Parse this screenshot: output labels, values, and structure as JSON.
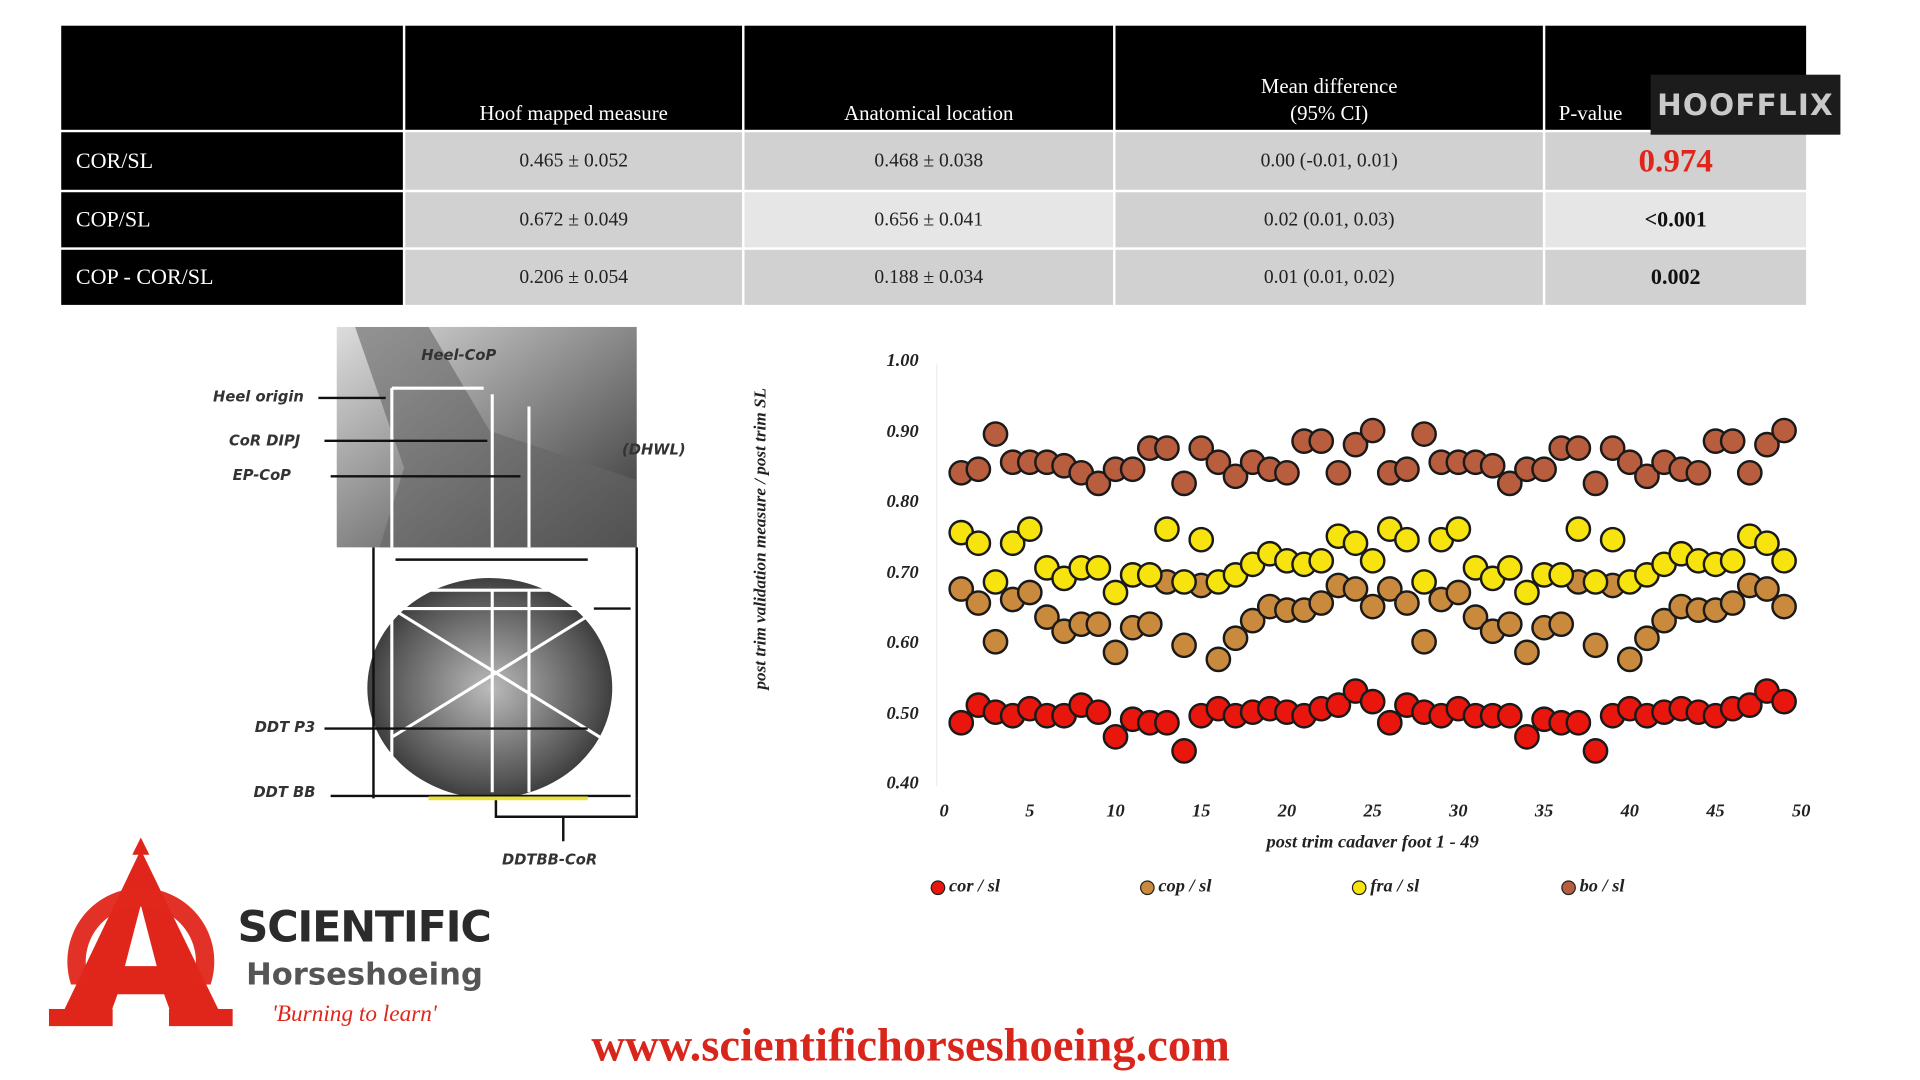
{
  "watermark": {
    "label": "HOOFFLIX"
  },
  "table": {
    "headers": [
      "",
      "Hoof mapped measure",
      "Anatomical location",
      "Mean difference",
      "P-value"
    ],
    "header_sub": "(95% CI)",
    "rows": [
      {
        "label": "COR/SL",
        "hoof": "0.465 ± 0.052",
        "anat": "0.468 ± 0.038",
        "diff": "0.00 (-0.01, 0.01)",
        "p": "0.974"
      },
      {
        "label": "COP/SL",
        "hoof": "0.672 ± 0.049",
        "anat": "0.656 ± 0.041",
        "diff": "0.02 (0.01, 0.03)",
        "p": "<0.001"
      },
      {
        "label": "COP - COR/SL",
        "hoof": "0.206 ± 0.054",
        "anat": "0.188 ± 0.034",
        "diff": "0.01 (0.01, 0.02)",
        "p": "0.002"
      }
    ],
    "highlight_color": "#e0261b"
  },
  "diagram": {
    "labels": {
      "heel_cop": "Heel-CoP",
      "heel_origin": "Heel origin",
      "cor_dipj": "CoR DIPJ",
      "ep_cop": "EP-CoP",
      "dhwl": "(DHWL)",
      "ddt_p3": "DDT P3",
      "ddt_bb": "DDT BB",
      "ddtbb_cor": "DDTBB-CoR"
    }
  },
  "chart_data": {
    "type": "scatter",
    "xlabel": "post trim cadaver foot 1 - 49",
    "ylabel": "post trim validation measure / post trim SL",
    "xlim": [
      0,
      50
    ],
    "ylim": [
      0.4,
      1.0
    ],
    "xticks": [
      "0",
      "5",
      "10",
      "15",
      "20",
      "25",
      "30",
      "35",
      "40",
      "45",
      "50"
    ],
    "yticks": [
      "1.00",
      "0.90",
      "0.80",
      "0.70",
      "0.60",
      "0.50",
      "0.40"
    ],
    "legend_position": "bottom",
    "x": [
      1,
      2,
      3,
      4,
      5,
      6,
      7,
      8,
      9,
      10,
      11,
      12,
      13,
      14,
      15,
      16,
      17,
      18,
      19,
      20,
      21,
      22,
      23,
      24,
      25,
      26,
      27,
      28,
      29,
      30,
      31,
      32,
      33,
      34,
      35,
      36,
      37,
      38,
      39,
      40,
      41,
      42,
      43,
      44,
      45,
      46,
      47,
      48,
      49
    ],
    "series": [
      {
        "name": "cor / sl",
        "color": "#e8160c",
        "values": [
          0.49,
          0.515,
          0.505,
          0.5,
          0.51,
          0.5,
          0.5,
          0.515,
          0.505,
          0.47,
          0.495,
          0.49,
          0.49,
          0.45,
          0.5,
          0.51,
          0.5,
          0.505,
          0.51,
          0.505,
          0.5,
          0.51,
          0.515,
          0.535,
          0.52,
          0.49,
          0.515,
          0.505,
          0.5,
          0.51,
          0.5,
          0.5,
          0.5,
          0.47,
          0.495,
          0.49,
          0.49,
          0.45,
          0.5,
          0.51,
          0.5,
          0.505,
          0.51,
          0.505,
          0.5,
          0.51,
          0.515,
          0.535,
          0.52
        ]
      },
      {
        "name": "cop / sl",
        "color": "#c98a3e",
        "values": [
          0.68,
          0.66,
          0.605,
          0.665,
          0.675,
          0.64,
          0.62,
          0.63,
          0.63,
          0.59,
          0.625,
          0.63,
          0.69,
          0.6,
          0.685,
          0.58,
          0.61,
          0.635,
          0.655,
          0.65,
          0.65,
          0.66,
          0.685,
          0.68,
          0.655,
          0.68,
          0.66,
          0.605,
          0.665,
          0.675,
          0.64,
          0.62,
          0.63,
          0.59,
          0.625,
          0.63,
          0.69,
          0.6,
          0.685,
          0.58,
          0.61,
          0.635,
          0.655,
          0.65,
          0.65,
          0.66,
          0.685,
          0.68,
          0.655
        ]
      },
      {
        "name": "fra / sl",
        "color": "#f7e40f",
        "values": [
          0.76,
          0.745,
          0.69,
          0.745,
          0.765,
          0.71,
          0.695,
          0.71,
          0.71,
          0.675,
          0.7,
          0.7,
          0.765,
          0.69,
          0.75,
          0.69,
          0.7,
          0.715,
          0.73,
          0.72,
          0.715,
          0.72,
          0.755,
          0.745,
          0.72,
          0.765,
          0.75,
          0.69,
          0.75,
          0.765,
          0.71,
          0.695,
          0.71,
          0.675,
          0.7,
          0.7,
          0.765,
          0.69,
          0.75,
          0.69,
          0.7,
          0.715,
          0.73,
          0.72,
          0.715,
          0.72,
          0.755,
          0.745,
          0.72
        ]
      },
      {
        "name": "bo / sl",
        "color": "#b85e3f",
        "values": [
          0.845,
          0.85,
          0.9,
          0.86,
          0.86,
          0.86,
          0.855,
          0.845,
          0.83,
          0.85,
          0.85,
          0.88,
          0.88,
          0.83,
          0.88,
          0.86,
          0.84,
          0.86,
          0.85,
          0.845,
          0.89,
          0.89,
          0.845,
          0.885,
          0.905,
          0.845,
          0.85,
          0.9,
          0.86,
          0.86,
          0.86,
          0.855,
          0.83,
          0.85,
          0.85,
          0.88,
          0.88,
          0.83,
          0.88,
          0.86,
          0.84,
          0.86,
          0.85,
          0.845,
          0.89,
          0.89,
          0.845,
          0.885,
          0.905
        ]
      }
    ]
  },
  "logo": {
    "line1": "SCIENTIFIC",
    "line2": "Horseshoeing",
    "tagline": "'Burning to learn'",
    "color": "#e0261b"
  },
  "footer": {
    "url": "www.scientifichorseshoeing.com"
  }
}
